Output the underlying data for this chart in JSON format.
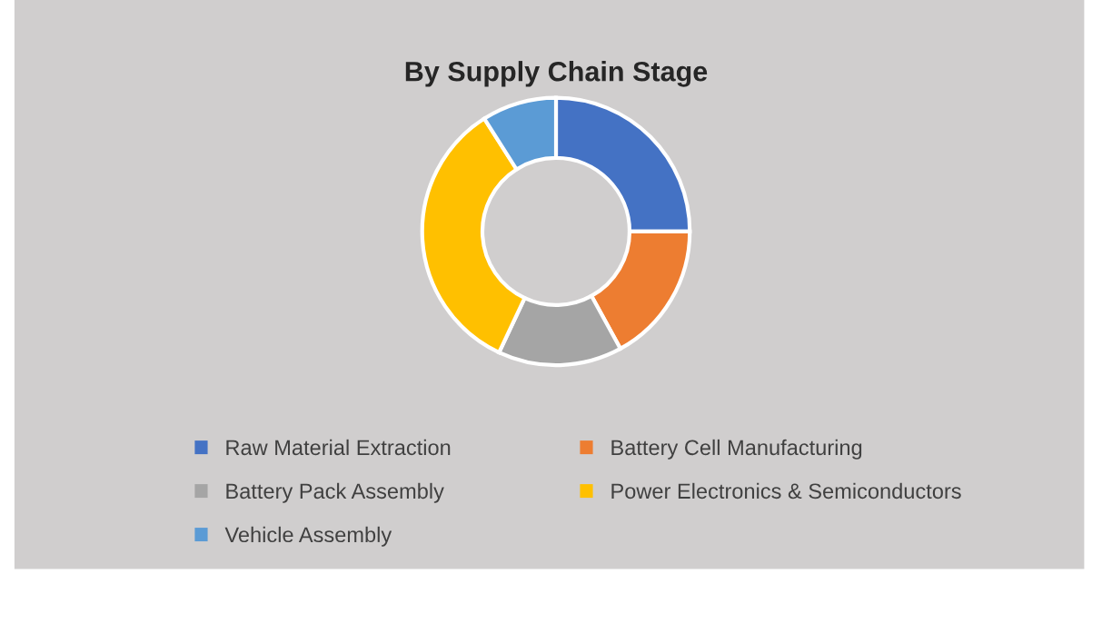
{
  "chart_data": {
    "type": "donut",
    "title": "By Supply Chain Stage",
    "categories": [
      "Raw Material Extraction",
      "Battery Cell Manufacturing",
      "Battery Pack Assembly",
      "Power Electronics & Semiconductors",
      "Vehicle Assembly"
    ],
    "values": [
      25,
      17,
      15,
      34,
      9
    ],
    "colors": [
      "#4472c4",
      "#ed7d31",
      "#a5a5a5",
      "#ffc000",
      "#5b9bd5"
    ],
    "legend": "bottom"
  }
}
